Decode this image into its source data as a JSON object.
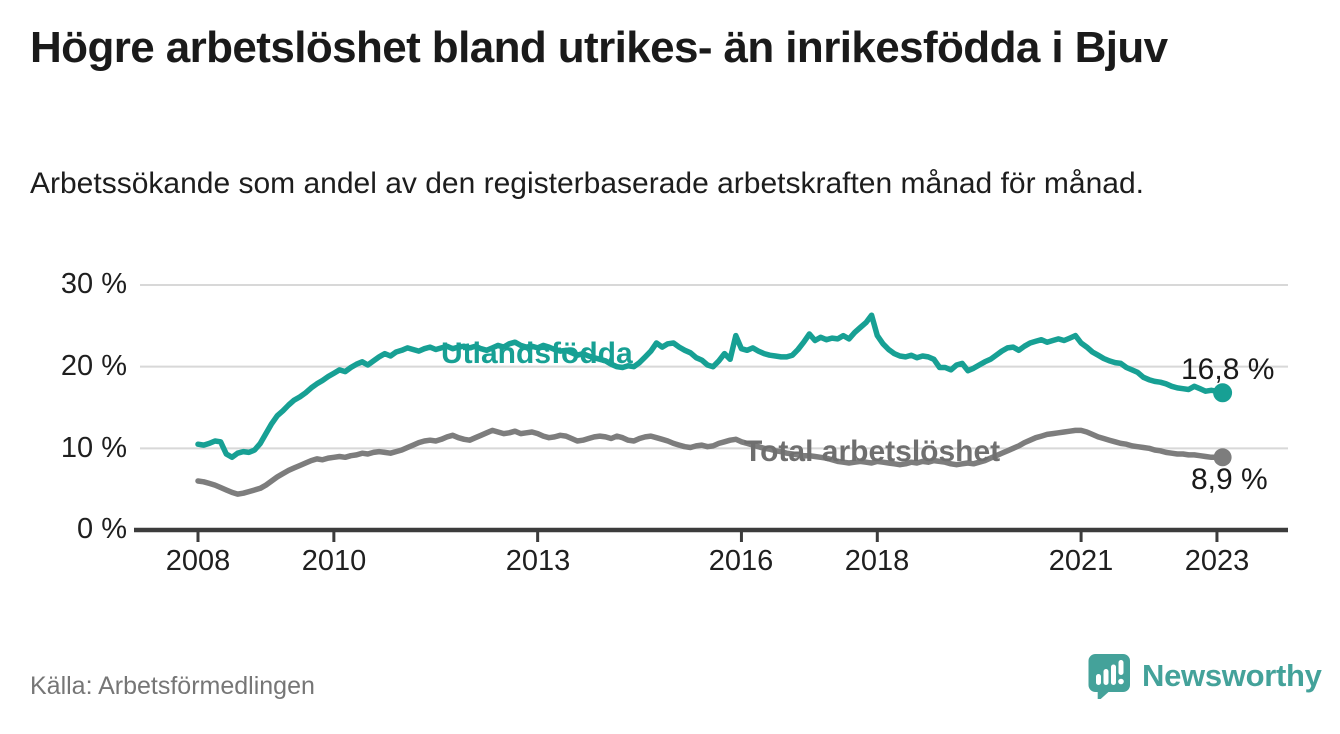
{
  "header": {
    "title": "Högre arbetslöshet bland utrikes- än inrikesfödda i Bjuv",
    "subtitle": "Arbetssökande som andel av den registerbaserade arbetskraften månad för månad."
  },
  "footer": {
    "source": "Källa: Arbetsförmedlingen",
    "logo_text": "Newsworthy"
  },
  "colors": {
    "foreign_series": "#17a094",
    "total_series": "#7d7d7d",
    "grid": "#d8d8d8",
    "axis": "#3c3c3c",
    "text": "#1a1a1a",
    "muted_text": "#767676",
    "logo": "#44a29a"
  },
  "chart_data": {
    "type": "line",
    "title": "Högre arbetslöshet bland utrikes- än inrikesfödda i Bjuv",
    "subtitle": "Arbetssökande som andel av den registerbaserade arbetskraften månad för månad.",
    "unit": "%",
    "x_start": "2008-01",
    "x_end": "2023-02",
    "x_frequency": "monthly",
    "ylim": [
      0,
      32
    ],
    "grid": "horizontal",
    "y_tick_values": [
      30,
      20,
      10,
      0
    ],
    "y_tick_labels": [
      "30 %",
      "20 %",
      "10 %",
      "0 %"
    ],
    "x_tick_years": [
      2008,
      2010,
      2013,
      2016,
      2018,
      2021,
      2023
    ],
    "x_tick_labels": [
      "2008",
      "2010",
      "2013",
      "2016",
      "2018",
      "2021",
      "2023"
    ],
    "series": [
      {
        "name": "Utlandsfödda",
        "color": "#17a094",
        "end_label": "16,8 %",
        "last_value": 16.8,
        "values": [
          10.5,
          10.4,
          10.6,
          10.9,
          10.8,
          9.3,
          8.9,
          9.4,
          9.6,
          9.5,
          9.8,
          10.6,
          11.8,
          13.0,
          14.0,
          14.6,
          15.3,
          15.9,
          16.3,
          16.8,
          17.4,
          17.9,
          18.3,
          18.8,
          19.2,
          19.6,
          19.4,
          19.9,
          20.3,
          20.6,
          20.2,
          20.7,
          21.2,
          21.6,
          21.3,
          21.8,
          22.0,
          22.3,
          22.1,
          21.9,
          22.2,
          22.4,
          22.1,
          22.3,
          22.5,
          22.2,
          22.4,
          22.5,
          22.3,
          22.5,
          22.2,
          22.0,
          22.3,
          22.6,
          22.4,
          22.8,
          23.0,
          22.6,
          22.4,
          22.5,
          22.3,
          22.6,
          22.4,
          22.1,
          21.9,
          22.0,
          21.7,
          21.4,
          21.6,
          21.3,
          21.1,
          20.9,
          20.7,
          20.3,
          20.0,
          19.9,
          20.1,
          20.0,
          20.5,
          21.2,
          21.9,
          22.9,
          22.4,
          22.8,
          22.9,
          22.4,
          22.0,
          21.7,
          21.1,
          20.8,
          20.2,
          20.0,
          20.7,
          21.6,
          20.9,
          23.8,
          22.2,
          22.0,
          22.3,
          21.9,
          21.6,
          21.4,
          21.3,
          21.2,
          21.2,
          21.4,
          22.1,
          23.0,
          24.0,
          23.2,
          23.6,
          23.3,
          23.5,
          23.4,
          23.8,
          23.4,
          24.2,
          24.8,
          25.4,
          26.3,
          23.8,
          22.8,
          22.1,
          21.6,
          21.3,
          21.2,
          21.4,
          21.1,
          21.3,
          21.2,
          20.9,
          19.9,
          19.9,
          19.6,
          20.2,
          20.4,
          19.5,
          19.8,
          20.2,
          20.6,
          20.9,
          21.4,
          21.9,
          22.3,
          22.4,
          22.0,
          22.5,
          22.9,
          23.1,
          23.3,
          23.0,
          23.2,
          23.4,
          23.2,
          23.5,
          23.8,
          22.9,
          22.4,
          21.8,
          21.4,
          21.0,
          20.7,
          20.5,
          20.4,
          19.9,
          19.6,
          19.3,
          18.7,
          18.4,
          18.2,
          18.1,
          17.9,
          17.6,
          17.4,
          17.3,
          17.2,
          17.6,
          17.3,
          17.0,
          17.1,
          17.0,
          16.8
        ]
      },
      {
        "name": "Total arbetslöshet",
        "color": "#7d7d7d",
        "end_label": "8,9 %",
        "last_value": 8.9,
        "values": [
          6.0,
          5.9,
          5.7,
          5.5,
          5.2,
          4.9,
          4.6,
          4.4,
          4.5,
          4.7,
          4.9,
          5.1,
          5.5,
          6.0,
          6.5,
          6.9,
          7.3,
          7.6,
          7.9,
          8.2,
          8.5,
          8.7,
          8.6,
          8.8,
          8.9,
          9.0,
          8.9,
          9.1,
          9.2,
          9.4,
          9.3,
          9.5,
          9.6,
          9.5,
          9.4,
          9.6,
          9.8,
          10.1,
          10.4,
          10.7,
          10.9,
          11.0,
          10.9,
          11.1,
          11.4,
          11.6,
          11.3,
          11.1,
          11.0,
          11.3,
          11.6,
          11.9,
          12.2,
          12.0,
          11.8,
          11.9,
          12.1,
          11.8,
          11.9,
          12.0,
          11.8,
          11.5,
          11.3,
          11.4,
          11.6,
          11.5,
          11.2,
          10.9,
          11.0,
          11.2,
          11.4,
          11.5,
          11.4,
          11.2,
          11.5,
          11.3,
          11.0,
          10.9,
          11.2,
          11.4,
          11.5,
          11.3,
          11.1,
          10.9,
          10.6,
          10.4,
          10.2,
          10.1,
          10.3,
          10.4,
          10.2,
          10.3,
          10.6,
          10.8,
          11.0,
          11.1,
          10.8,
          10.6,
          10.4,
          10.2,
          10.0,
          9.9,
          9.7,
          9.6,
          9.4,
          9.3,
          9.2,
          9.1,
          9.1,
          9.0,
          8.9,
          8.8,
          8.6,
          8.4,
          8.3,
          8.2,
          8.3,
          8.4,
          8.3,
          8.2,
          8.4,
          8.3,
          8.2,
          8.1,
          8.0,
          8.1,
          8.3,
          8.2,
          8.4,
          8.3,
          8.5,
          8.4,
          8.3,
          8.1,
          8.0,
          8.1,
          8.2,
          8.1,
          8.3,
          8.5,
          8.8,
          9.1,
          9.4,
          9.7,
          10.0,
          10.3,
          10.7,
          11.0,
          11.3,
          11.5,
          11.7,
          11.8,
          11.9,
          12.0,
          12.1,
          12.2,
          12.2,
          12.0,
          11.7,
          11.4,
          11.2,
          11.0,
          10.8,
          10.6,
          10.5,
          10.3,
          10.2,
          10.1,
          10.0,
          9.8,
          9.7,
          9.5,
          9.4,
          9.3,
          9.3,
          9.2,
          9.2,
          9.1,
          9.0,
          8.9,
          8.9,
          8.9
        ]
      }
    ]
  }
}
